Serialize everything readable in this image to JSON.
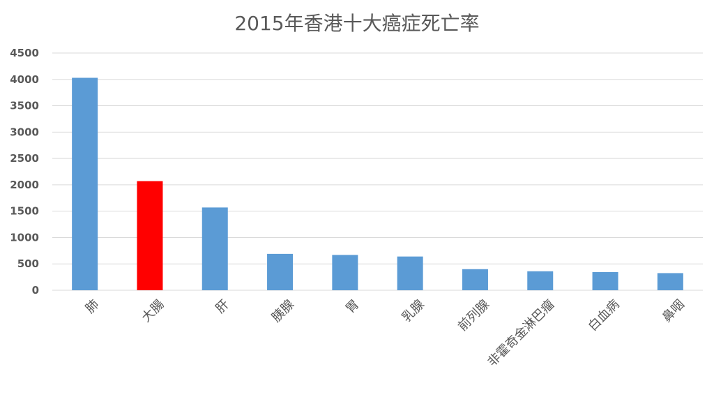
{
  "chart_data": {
    "type": "bar",
    "title": "2015年香港十大癌症死亡率",
    "categories": [
      "肺",
      "大腸",
      "肝",
      "胰腺",
      "胃",
      "乳腺",
      "前列腺",
      "非霍奇金淋巴瘤",
      "白血病",
      "鼻咽"
    ],
    "values": [
      4030,
      2070,
      1570,
      690,
      670,
      640,
      400,
      360,
      345,
      325
    ],
    "ylim": [
      0,
      4500
    ],
    "yticks": [
      0,
      500,
      1000,
      1500,
      2000,
      2500,
      3000,
      3500,
      4000,
      4500
    ],
    "grid": true,
    "legend": "none",
    "colors": {
      "default": "#5b9bd5",
      "highlight": "#ff0000",
      "highlight_index": 1,
      "grid": "#d9d9d9",
      "text": "#595959"
    }
  }
}
